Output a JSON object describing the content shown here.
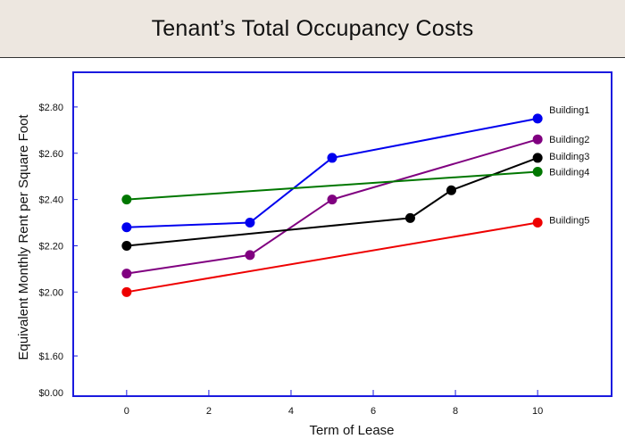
{
  "header": {
    "title": "Tenant’s Total Occupancy Costs"
  },
  "chart_data": {
    "type": "line",
    "title": "Tenant’s Total Occupancy Costs",
    "xlabel": "Term of Lease",
    "ylabel": "Equivalent Monthly Rent per Square Foot",
    "xlim": [
      -1.3,
      11.8
    ],
    "x_ticks": [
      0,
      2,
      4,
      6,
      8,
      10
    ],
    "x_tick_labels": [
      "0",
      "2",
      "4",
      "6",
      "8",
      "10"
    ],
    "y_ticks": [
      2.0,
      2.2,
      2.4,
      2.6,
      2.8
    ],
    "y_tick_labels": [
      "$2.00",
      "$2.20",
      "$2.40",
      "$2.60",
      "$2.80"
    ],
    "y_break_label": "$0.00",
    "ylim": [
      1.55,
      2.95
    ],
    "grid": false,
    "legend": "labels at line ends (right)",
    "series": [
      {
        "name": "Building1",
        "color": "#0000ee",
        "x": [
          0,
          3,
          5,
          10
        ],
        "y": [
          2.28,
          2.3,
          2.58,
          2.75
        ]
      },
      {
        "name": "Building2",
        "color": "#800080",
        "x": [
          0,
          3,
          5,
          10
        ],
        "y": [
          2.08,
          2.16,
          2.4,
          2.66
        ]
      },
      {
        "name": "Building3",
        "color": "#000000",
        "x": [
          0,
          6.9,
          7.9,
          10
        ],
        "y": [
          2.2,
          2.32,
          2.44,
          2.58
        ]
      },
      {
        "name": "Building4",
        "color": "#007700",
        "x": [
          0,
          10
        ],
        "y": [
          2.4,
          2.52
        ]
      },
      {
        "name": "Building5",
        "color": "#ee0000",
        "x": [
          0,
          10
        ],
        "y": [
          2.0,
          2.3
        ]
      }
    ]
  }
}
